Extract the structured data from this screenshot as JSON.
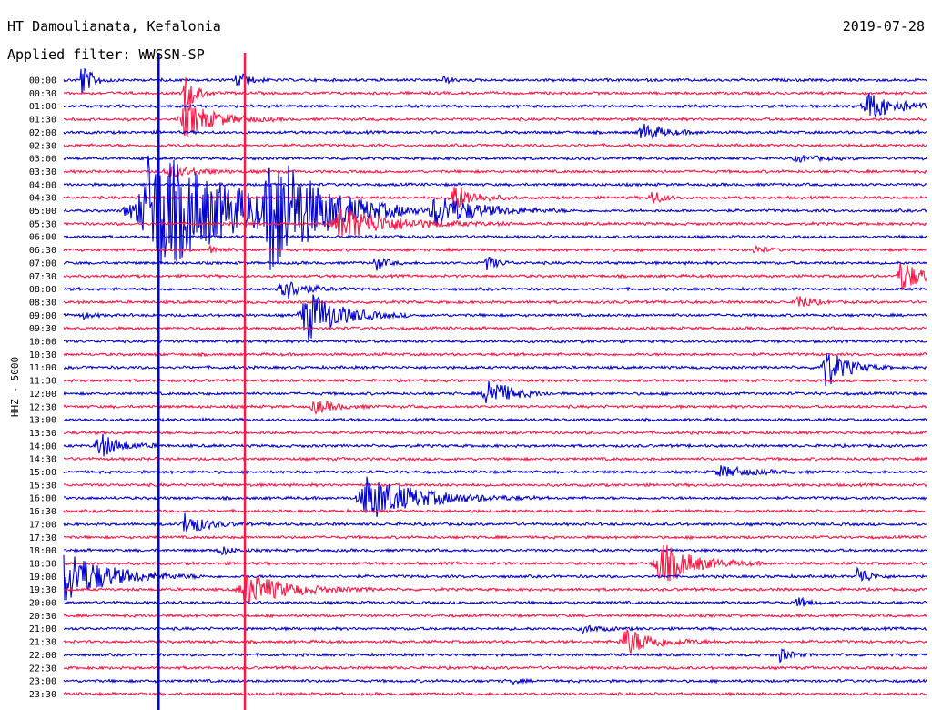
{
  "header": {
    "station": "HT Damoulianata, Kefalonia",
    "filter": "Applied filter: WWSSN-SP",
    "date": "2019-07-28"
  },
  "chart_data": {
    "type": "line",
    "title": "HT Damoulianata, Kefalonia",
    "subtitle": "Applied filter: WWSSN-SP",
    "ylabel": "HHZ - 5000",
    "row_labels": [
      "00:00",
      "00:30",
      "01:00",
      "01:30",
      "02:00",
      "02:30",
      "03:00",
      "03:30",
      "04:00",
      "04:30",
      "05:00",
      "05:30",
      "06:00",
      "06:30",
      "07:00",
      "07:30",
      "08:00",
      "08:30",
      "09:00",
      "09:30",
      "10:00",
      "10:30",
      "11:00",
      "11:30",
      "12:00",
      "12:30",
      "13:00",
      "13:30",
      "14:00",
      "14:30",
      "15:00",
      "15:30",
      "16:00",
      "16:30",
      "17:00",
      "17:30",
      "18:00",
      "18:30",
      "19:00",
      "19:30",
      "20:00",
      "20:30",
      "21:00",
      "21:30",
      "22:00",
      "22:30",
      "23:00",
      "23:30"
    ],
    "row_colors": [
      "#0000d0",
      "#ff1744"
    ],
    "events": [
      {
        "row": 0,
        "x": 0.02,
        "amp": 1.6,
        "w": 0.01
      },
      {
        "row": 0,
        "x": 0.2,
        "amp": 1.0,
        "w": 0.01
      },
      {
        "row": 0,
        "x": 0.44,
        "amp": 0.3,
        "w": 0.008
      },
      {
        "row": 1,
        "x": 0.14,
        "amp": 1.8,
        "w": 0.01
      },
      {
        "row": 2,
        "x": 0.93,
        "amp": 1.2,
        "w": 0.03
      },
      {
        "row": 3,
        "x": 0.14,
        "amp": 1.5,
        "w": 0.03
      },
      {
        "row": 4,
        "x": 0.67,
        "amp": 0.8,
        "w": 0.02
      },
      {
        "row": 6,
        "x": 0.85,
        "amp": 0.3,
        "w": 0.02
      },
      {
        "row": 7,
        "x": 0.12,
        "amp": 0.5,
        "w": 0.03
      },
      {
        "row": 9,
        "x": 0.45,
        "amp": 1.3,
        "w": 0.02
      },
      {
        "row": 9,
        "x": 0.68,
        "amp": 0.8,
        "w": 0.01
      },
      {
        "row": 10,
        "x": 0.1,
        "amp": 6.0,
        "w": 0.08
      },
      {
        "row": 10,
        "x": 0.24,
        "amp": 5.0,
        "w": 0.04
      },
      {
        "row": 10,
        "x": 0.43,
        "amp": 1.5,
        "w": 0.04
      },
      {
        "row": 10,
        "x": 0.07,
        "amp": 0.5,
        "w": 0.01
      },
      {
        "row": 11,
        "x": 0.32,
        "amp": 1.5,
        "w": 0.05
      },
      {
        "row": 13,
        "x": 0.17,
        "amp": 0.4,
        "w": 0.01
      },
      {
        "row": 13,
        "x": 0.8,
        "amp": 0.4,
        "w": 0.01
      },
      {
        "row": 14,
        "x": 0.36,
        "amp": 0.7,
        "w": 0.01
      },
      {
        "row": 14,
        "x": 0.49,
        "amp": 0.7,
        "w": 0.01
      },
      {
        "row": 15,
        "x": 0.97,
        "amp": 1.5,
        "w": 0.02
      },
      {
        "row": 16,
        "x": 0.25,
        "amp": 1.2,
        "w": 0.02
      },
      {
        "row": 17,
        "x": 0.85,
        "amp": 1.0,
        "w": 0.01
      },
      {
        "row": 18,
        "x": 0.28,
        "amp": 2.5,
        "w": 0.03
      },
      {
        "row": 18,
        "x": 0.02,
        "amp": 0.3,
        "w": 0.01
      },
      {
        "row": 22,
        "x": 0.88,
        "amp": 2.0,
        "w": 0.02
      },
      {
        "row": 24,
        "x": 0.49,
        "amp": 1.6,
        "w": 0.02
      },
      {
        "row": 25,
        "x": 0.29,
        "amp": 0.6,
        "w": 0.02
      },
      {
        "row": 28,
        "x": 0.04,
        "amp": 1.2,
        "w": 0.02
      },
      {
        "row": 30,
        "x": 0.76,
        "amp": 0.5,
        "w": 0.03
      },
      {
        "row": 32,
        "x": 0.35,
        "amp": 2.0,
        "w": 0.05
      },
      {
        "row": 34,
        "x": 0.14,
        "amp": 1.0,
        "w": 0.02
      },
      {
        "row": 36,
        "x": 0.18,
        "amp": 0.5,
        "w": 0.01
      },
      {
        "row": 37,
        "x": 0.69,
        "amp": 2.0,
        "w": 0.03
      },
      {
        "row": 38,
        "x": 0.0,
        "amp": 2.5,
        "w": 0.04
      },
      {
        "row": 38,
        "x": 0.92,
        "amp": 1.0,
        "w": 0.01
      },
      {
        "row": 39,
        "x": 0.21,
        "amp": 1.5,
        "w": 0.04
      },
      {
        "row": 40,
        "x": 0.85,
        "amp": 0.5,
        "w": 0.01
      },
      {
        "row": 42,
        "x": 0.6,
        "amp": 0.3,
        "w": 0.02
      },
      {
        "row": 43,
        "x": 0.65,
        "amp": 1.2,
        "w": 0.03
      },
      {
        "row": 44,
        "x": 0.83,
        "amp": 0.6,
        "w": 0.01
      },
      {
        "row": 46,
        "x": 0.52,
        "amp": 0.2,
        "w": 0.01
      }
    ],
    "spikes": [
      {
        "x": 0.11,
        "rows": [
          0,
          47
        ],
        "color": "#0000d0"
      },
      {
        "x": 0.21,
        "rows": [
          0,
          47
        ],
        "color": "#ff1744"
      }
    ]
  }
}
